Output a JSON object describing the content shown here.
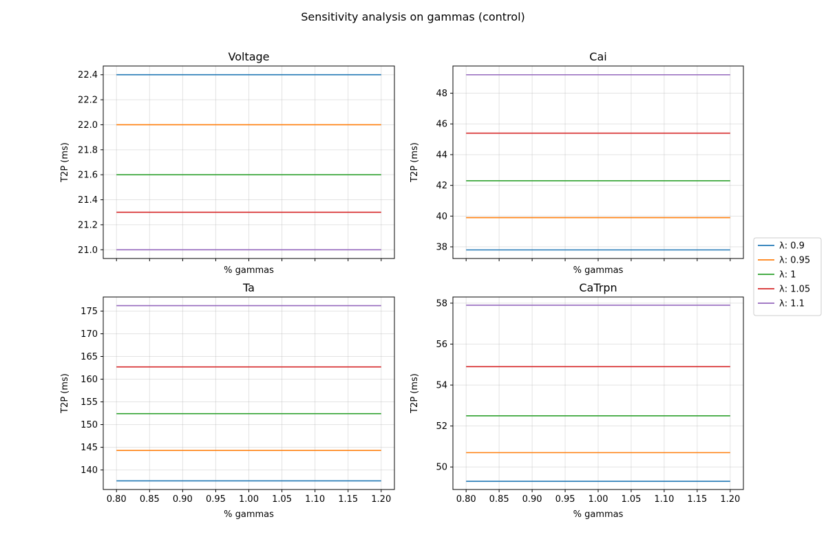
{
  "figure": {
    "title": "Sensitivity analysis on gammas (control)"
  },
  "legend": {
    "placement": "right-center",
    "entries": [
      {
        "label": "λ: 0.9",
        "color": "#1f77b4"
      },
      {
        "label": "λ: 0.95",
        "color": "#ff7f0e"
      },
      {
        "label": "λ: 1",
        "color": "#2ca02c"
      },
      {
        "label": "λ: 1.05",
        "color": "#d62728"
      },
      {
        "label": "λ: 1.1",
        "color": "#9467bd"
      }
    ]
  },
  "chart_data": [
    {
      "type": "line",
      "title": "Voltage",
      "xlabel": "% gammas",
      "ylabel": "T2P (ms)",
      "x": [
        0.8,
        1.2
      ],
      "xlim": [
        0.78,
        1.22
      ],
      "ylim": [
        20.93,
        22.47
      ],
      "xticks": [
        "0.80",
        "0.85",
        "0.90",
        "0.95",
        "1.00",
        "1.05",
        "1.10",
        "1.15",
        "1.20"
      ],
      "yticks": [
        "21.0",
        "21.2",
        "21.4",
        "21.6",
        "21.8",
        "22.0",
        "22.2",
        "22.4"
      ],
      "show_xtick_labels": false,
      "grid": true,
      "series": [
        {
          "name": "λ: 0.9",
          "values": [
            22.4,
            22.4
          ]
        },
        {
          "name": "λ: 0.95",
          "values": [
            22.0,
            22.0
          ]
        },
        {
          "name": "λ: 1",
          "values": [
            21.6,
            21.6
          ]
        },
        {
          "name": "λ: 1.05",
          "values": [
            21.3,
            21.3
          ]
        },
        {
          "name": "λ: 1.1",
          "values": [
            21.0,
            21.0
          ]
        }
      ]
    },
    {
      "type": "line",
      "title": "Cai",
      "xlabel": "% gammas",
      "ylabel": "T2P (ms)",
      "x": [
        0.8,
        1.2
      ],
      "xlim": [
        0.78,
        1.22
      ],
      "ylim": [
        37.24,
        49.77
      ],
      "xticks": [
        "0.80",
        "0.85",
        "0.90",
        "0.95",
        "1.00",
        "1.05",
        "1.10",
        "1.15",
        "1.20"
      ],
      "yticks": [
        "38",
        "40",
        "42",
        "44",
        "46",
        "48"
      ],
      "show_xtick_labels": false,
      "grid": true,
      "series": [
        {
          "name": "λ: 0.9",
          "values": [
            37.8,
            37.8
          ]
        },
        {
          "name": "λ: 0.95",
          "values": [
            39.9,
            39.9
          ]
        },
        {
          "name": "λ: 1",
          "values": [
            42.3,
            42.3
          ]
        },
        {
          "name": "λ: 1.05",
          "values": [
            45.4,
            45.4
          ]
        },
        {
          "name": "λ: 1.1",
          "values": [
            49.2,
            49.2
          ]
        }
      ]
    },
    {
      "type": "line",
      "title": "Ta",
      "xlabel": "% gammas",
      "ylabel": "T2P (ms)",
      "x": [
        0.8,
        1.2
      ],
      "xlim": [
        0.78,
        1.22
      ],
      "ylim": [
        135.7,
        178.1
      ],
      "xticks": [
        "0.80",
        "0.85",
        "0.90",
        "0.95",
        "1.00",
        "1.05",
        "1.10",
        "1.15",
        "1.20"
      ],
      "yticks": [
        "140",
        "145",
        "150",
        "155",
        "160",
        "165",
        "170",
        "175"
      ],
      "show_xtick_labels": true,
      "grid": true,
      "series": [
        {
          "name": "λ: 0.9",
          "values": [
            137.6,
            137.6
          ]
        },
        {
          "name": "λ: 0.95",
          "values": [
            144.3,
            144.3
          ]
        },
        {
          "name": "λ: 1",
          "values": [
            152.4,
            152.4
          ]
        },
        {
          "name": "λ: 1.05",
          "values": [
            162.7,
            162.7
          ]
        },
        {
          "name": "λ: 1.1",
          "values": [
            176.2,
            176.2
          ]
        }
      ]
    },
    {
      "type": "line",
      "title": "CaTrpn",
      "xlabel": "% gammas",
      "ylabel": "T2P (ms)",
      "x": [
        0.8,
        1.2
      ],
      "xlim": [
        0.78,
        1.22
      ],
      "ylim": [
        48.9,
        58.3
      ],
      "xticks": [
        "0.80",
        "0.85",
        "0.90",
        "0.95",
        "1.00",
        "1.05",
        "1.10",
        "1.15",
        "1.20"
      ],
      "yticks": [
        "50",
        "52",
        "54",
        "56",
        "58"
      ],
      "show_xtick_labels": true,
      "grid": true,
      "series": [
        {
          "name": "λ: 0.9",
          "values": [
            49.3,
            49.3
          ]
        },
        {
          "name": "λ: 0.95",
          "values": [
            50.7,
            50.7
          ]
        },
        {
          "name": "λ: 1",
          "values": [
            52.5,
            52.5
          ]
        },
        {
          "name": "λ: 1.05",
          "values": [
            54.9,
            54.9
          ]
        },
        {
          "name": "λ: 1.1",
          "values": [
            57.9,
            57.9
          ]
        }
      ]
    }
  ]
}
